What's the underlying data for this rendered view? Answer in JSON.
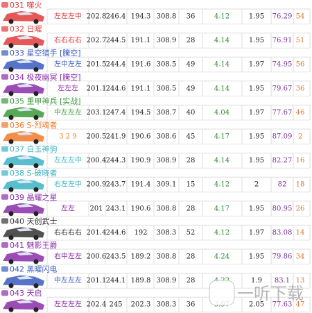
{
  "table": {
    "rows": [
      {
        "title": "031 噬火",
        "color": "#e23b3b",
        "cells": [
          "左左左中",
          202.8,
          246.4,
          194.3,
          308.8,
          36,
          4.12,
          1.95,
          76.29,
          54
        ]
      },
      {
        "title": "032 日曜",
        "color": "#e23b3b",
        "cells": [
          "右右右右",
          202.7,
          244.5,
          191.1,
          308.9,
          28,
          4.14,
          1.95,
          76.91,
          51
        ]
      },
      {
        "title": "033 星空猎手 [騰空]",
        "color": "#3a5bbf",
        "cells": [
          "左中左左",
          201.5,
          244.4,
          191.6,
          308.5,
          49,
          4.14,
          1.97,
          74.95,
          56
        ]
      },
      {
        "title": "034 极夜幽冥 [騰空]",
        "color": "#8a2ea8",
        "cells": [
          "左左左",
          201.1,
          244.6,
          191.1,
          308.5,
          49,
          4.14,
          1.95,
          79.67,
          36
        ]
      },
      {
        "title": "035 重甲神兵 [实战]",
        "color": "#3a9a3a",
        "cells": [
          "中左左左",
          203.1,
          247.4,
          194.5,
          308.7,
          40,
          4.04,
          1.97,
          77.67,
          46
        ]
      },
      {
        "title": "036 S-烈魂者",
        "color": "#f07a2a",
        "cells": [
          "3 2 9",
          200.5,
          241.9,
          190.6,
          308.6,
          45,
          4.17,
          1.95,
          87.09,
          2
        ]
      },
      {
        "title": "037 白玉神驹",
        "color": "#3bb3c4",
        "cells": [
          "左左左中",
          200.4,
          244.3,
          190.9,
          308.9,
          28,
          4.14,
          1.95,
          82.27,
          16
        ]
      },
      {
        "title": "038 S-破晓者",
        "color": "#3bb3c4",
        "cells": [
          "右左左中",
          200.9,
          243.7,
          191.4,
          309.1,
          15,
          4.12,
          2,
          82,
          18
        ]
      },
      {
        "title": "039 晶耀之星",
        "color": "#8a2ea8",
        "cells": [
          "左左",
          201,
          243.1,
          190.6,
          308.8,
          28,
          4.17,
          1.95,
          80.95,
          26
        ]
      },
      {
        "title": "040 天创武士",
        "color": "#333333",
        "cells": [
          "右右右右",
          201.4,
          244.6,
          192,
          308.3,
          52,
          4.12,
          1.97,
          83.08,
          14
        ]
      },
      {
        "title": "041 魅影王爵",
        "color": "#8a2ea8",
        "cells": [
          "右中左左",
          200.6,
          243.5,
          189.2,
          308.8,
          28,
          4.24,
          1.95,
          79.86,
          34
        ]
      },
      {
        "title": "042 黑曜闪电",
        "color": "#3a5bbf",
        "cells": [
          "中左左左",
          201.1,
          244.1,
          189.8,
          308.9,
          28,
          4.22,
          1.9,
          83.1,
          13
        ]
      },
      {
        "title": "043 天启",
        "color": "#8a2ea8",
        "cells": [
          "左左左左",
          202.4,
          245,
          202.3,
          308.3,
          36,
          3.97,
          2.05,
          77.63,
          47
        ]
      }
    ]
  },
  "watermark": "一听下载"
}
